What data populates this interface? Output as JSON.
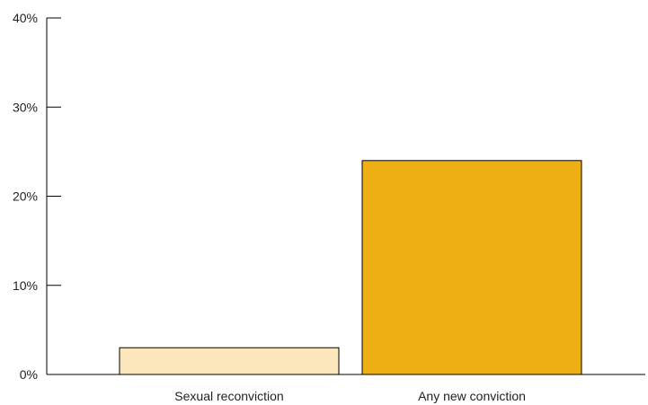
{
  "chart_data": {
    "type": "bar",
    "title": "",
    "xlabel": "",
    "ylabel": "",
    "categories": [
      "Sexual reconviction",
      "Any new conviction"
    ],
    "values": [
      3,
      24
    ],
    "ylim": [
      0,
      40
    ],
    "yticks": [
      0,
      10,
      20,
      30,
      40
    ],
    "ytick_labels": [
      "0%",
      "10%",
      "20%",
      "30%",
      "40%"
    ],
    "grid": false,
    "legend": "none",
    "bar_colors": [
      "#FCE7BD",
      "#EEAF14"
    ],
    "bar_stroke": "#000000",
    "axis_color": "#000000"
  }
}
